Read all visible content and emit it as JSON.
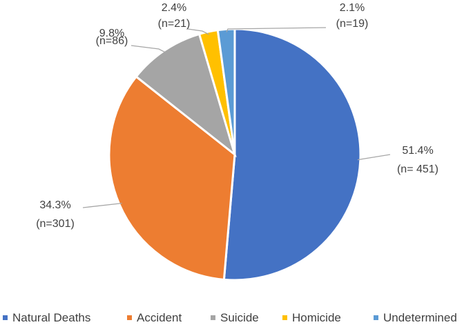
{
  "chart_data": {
    "type": "pie",
    "categories": [
      "Natural Deaths",
      "Accident",
      "Suicide",
      "Homicide",
      "Undetermined"
    ],
    "values": [
      451,
      301,
      86,
      21,
      19
    ],
    "percent_labels": [
      "51.4%",
      "34.3%",
      "9.8%",
      "2.4%",
      "2.1%"
    ],
    "count_labels": [
      "(n= 451)",
      "(n=301)",
      "(n=86)",
      "(n=21)",
      "(n=19)"
    ],
    "colors": [
      "#4472C4",
      "#ED7D31",
      "#A5A5A5",
      "#FFC000",
      "#5B9BD5"
    ],
    "start_angle_deg": 0,
    "direction": "clockwise",
    "legend": {
      "position": "bottom"
    }
  }
}
